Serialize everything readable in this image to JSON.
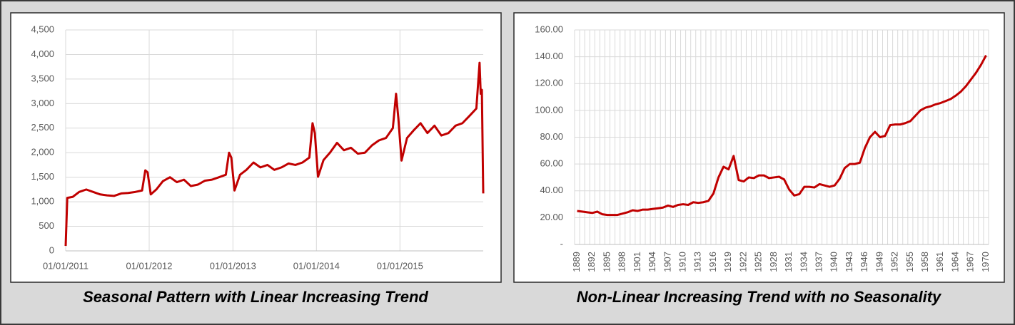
{
  "chart_data": [
    {
      "type": "line",
      "caption": "Seasonal Pattern with Linear Increasing Trend",
      "x": [
        "01/01/2011",
        "08/01/2011",
        "01/02/2011",
        "01/03/2011",
        "01/04/2011",
        "01/05/2011",
        "01/06/2011",
        "01/07/2011",
        "01/08/2011",
        "01/09/2011",
        "01/10/2011",
        "01/11/2011",
        "01/12/2011",
        "15/12/2011",
        "25/12/2011",
        "08/01/2012",
        "01/02/2012",
        "01/03/2012",
        "01/04/2012",
        "01/05/2012",
        "01/06/2012",
        "01/07/2012",
        "01/08/2012",
        "01/09/2012",
        "01/10/2012",
        "01/11/2012",
        "01/12/2012",
        "15/12/2012",
        "25/12/2012",
        "08/01/2013",
        "01/02/2013",
        "01/03/2013",
        "01/04/2013",
        "01/05/2013",
        "01/06/2013",
        "01/07/2013",
        "01/08/2013",
        "01/09/2013",
        "01/10/2013",
        "01/11/2013",
        "01/12/2013",
        "15/12/2013",
        "25/12/2013",
        "08/01/2014",
        "01/02/2014",
        "01/03/2014",
        "01/04/2014",
        "01/05/2014",
        "01/06/2014",
        "01/07/2014",
        "01/08/2014",
        "01/09/2014",
        "01/10/2014",
        "01/11/2014",
        "01/12/2014",
        "15/12/2014",
        "25/12/2014",
        "08/01/2015",
        "01/02/2015",
        "01/03/2015",
        "01/04/2015",
        "01/05/2015",
        "01/06/2015",
        "01/07/2015",
        "01/08/2015",
        "01/09/2015",
        "01/10/2015",
        "01/11/2015",
        "01/12/2015",
        "15/12/2015",
        "20/12/2015",
        "25/12/2015",
        "31/12/2015"
      ],
      "values": [
        100,
        1080,
        1100,
        1200,
        1250,
        1200,
        1150,
        1130,
        1120,
        1170,
        1180,
        1200,
        1230,
        1640,
        1600,
        1150,
        1250,
        1420,
        1500,
        1400,
        1450,
        1320,
        1350,
        1430,
        1450,
        1500,
        1550,
        2000,
        1900,
        1230,
        1550,
        1650,
        1800,
        1700,
        1750,
        1650,
        1700,
        1780,
        1750,
        1800,
        1900,
        2600,
        2400,
        1510,
        1850,
        2000,
        2200,
        2050,
        2100,
        1980,
        2000,
        2150,
        2250,
        2300,
        2500,
        3200,
        2700,
        1840,
        2300,
        2450,
        2600,
        2400,
        2550,
        2350,
        2400,
        2550,
        2600,
        2750,
        2900,
        3830,
        3200,
        3280,
        1170
      ],
      "color": "#c00000",
      "xlim": [
        "01/01/2011",
        "31/12/2015"
      ],
      "xticks": [
        "01/01/2011",
        "01/01/2012",
        "01/01/2013",
        "01/01/2014",
        "01/01/2015"
      ],
      "ylim": [
        0,
        4500
      ],
      "yticks": [
        0,
        500,
        {
          "value": 1000,
          "label": "1,000"
        },
        {
          "value": 1500,
          "label": "1,500"
        },
        {
          "value": 2000,
          "label": "2,000"
        },
        {
          "value": 2500,
          "label": "2,500"
        },
        {
          "value": 3000,
          "label": "3,000"
        },
        {
          "value": 3500,
          "label": "3,500"
        },
        {
          "value": 4000,
          "label": "4,000"
        },
        {
          "value": 4500,
          "label": "4,500"
        }
      ],
      "grid": true
    },
    {
      "type": "line",
      "caption": "Non-Linear Increasing Trend with no Seasonality",
      "categories": [
        "1889",
        null,
        null,
        "1892",
        null,
        null,
        "1895",
        null,
        null,
        "1898",
        null,
        null,
        "1901",
        null,
        null,
        "1904",
        null,
        null,
        "1907",
        null,
        null,
        "1910",
        null,
        null,
        "1913",
        null,
        null,
        "1916",
        null,
        null,
        "1919",
        null,
        null,
        "1922",
        null,
        null,
        "1925",
        null,
        null,
        "1928",
        null,
        null,
        "1931",
        null,
        null,
        "1934",
        null,
        null,
        "1937",
        null,
        null,
        "1940",
        null,
        null,
        "1943",
        null,
        null,
        "1946",
        null,
        null,
        "1949",
        null,
        null,
        "1952",
        null,
        null,
        "1955",
        null,
        null,
        "1958",
        null,
        null,
        "1961",
        null,
        null,
        "1964",
        null,
        null,
        "1967",
        null,
        null,
        "1970"
      ],
      "values": [
        25,
        24.5,
        24,
        23.5,
        24.5,
        22.5,
        22,
        22,
        22,
        23,
        24,
        25.5,
        25,
        26,
        26,
        26.5,
        27,
        27.5,
        29,
        28,
        29.5,
        30,
        29.5,
        31.5,
        31,
        31.5,
        32.5,
        38,
        50,
        58,
        56,
        66,
        48,
        47,
        50,
        49.5,
        51.5,
        51.5,
        49.5,
        50,
        50.5,
        48.5,
        41,
        36.5,
        37.5,
        43,
        43,
        42.5,
        45,
        44,
        43,
        44,
        49,
        57,
        60,
        60,
        61,
        72,
        80,
        84,
        80,
        81,
        89,
        89.5,
        89.5,
        90.5,
        92,
        96,
        100,
        102,
        103,
        104.5,
        105.5,
        107,
        108.5,
        111,
        114,
        118,
        123,
        128,
        134,
        141
      ],
      "color": "#c00000",
      "ylim": [
        0,
        160
      ],
      "yticks": [
        {
          "value": 0,
          "label": "-"
        },
        {
          "value": 20,
          "label": "20.00"
        },
        {
          "value": 40,
          "label": "40.00"
        },
        {
          "value": 60,
          "label": "60.00"
        },
        {
          "value": 80,
          "label": "80.00"
        },
        {
          "value": 100,
          "label": "100.00"
        },
        {
          "value": 120,
          "label": "120.00"
        },
        {
          "value": 140,
          "label": "140.00"
        },
        {
          "value": 160,
          "label": "160.00"
        }
      ],
      "grid": true
    }
  ]
}
